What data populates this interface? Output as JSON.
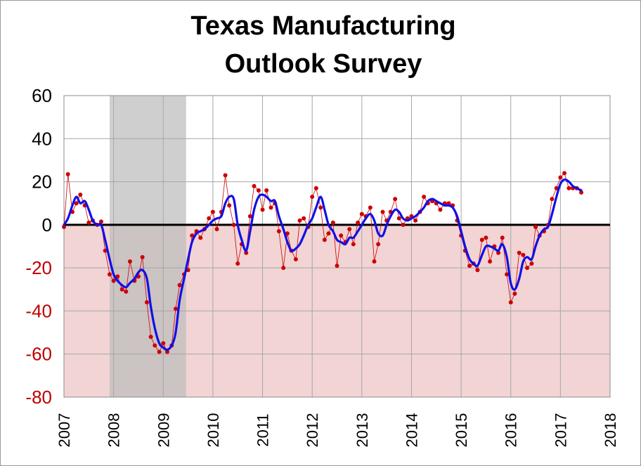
{
  "chart_data": {
    "type": "line",
    "title": [
      "Texas Manufacturing",
      "Outlook Survey"
    ],
    "xlabel": "",
    "ylabel": "",
    "xlim": [
      2007,
      2018
    ],
    "ylim": [
      -80,
      60
    ],
    "y_ticks": [
      "60",
      "40",
      "20",
      "0",
      "-20",
      "-40",
      "-60",
      "-80"
    ],
    "x_ticks": [
      "2007",
      "2008",
      "2009",
      "2010",
      "2011",
      "2012",
      "2013",
      "2014",
      "2015",
      "2016",
      "2017",
      "2018"
    ],
    "grid": true,
    "legend": "none",
    "recession_shading": {
      "from": 2007.92,
      "to": 2009.46,
      "color": "#bdbdbd"
    },
    "negative_region_color": "#f2d4d4",
    "zero_line_color": "#000000",
    "series": [
      {
        "style": "thin red line with red dot markers",
        "color": "#cc0000",
        "points": [
          [
            2007.0,
            -1
          ],
          [
            2007.08,
            23.5
          ],
          [
            2007.17,
            6
          ],
          [
            2007.25,
            10
          ],
          [
            2007.33,
            14
          ],
          [
            2007.42,
            9
          ],
          [
            2007.5,
            1
          ],
          [
            2007.58,
            2
          ],
          [
            2007.67,
            0
          ],
          [
            2007.75,
            1.5
          ],
          [
            2007.83,
            -12
          ],
          [
            2007.92,
            -23
          ],
          [
            2008.0,
            -26
          ],
          [
            2008.08,
            -24
          ],
          [
            2008.17,
            -30
          ],
          [
            2008.25,
            -31
          ],
          [
            2008.33,
            -17
          ],
          [
            2008.42,
            -26
          ],
          [
            2008.5,
            -24
          ],
          [
            2008.58,
            -15
          ],
          [
            2008.67,
            -36
          ],
          [
            2008.75,
            -52
          ],
          [
            2008.83,
            -56
          ],
          [
            2008.92,
            -59
          ],
          [
            2009.0,
            -55
          ],
          [
            2009.08,
            -59
          ],
          [
            2009.17,
            -56
          ],
          [
            2009.25,
            -39
          ],
          [
            2009.33,
            -28
          ],
          [
            2009.42,
            -23
          ],
          [
            2009.5,
            -21
          ],
          [
            2009.58,
            -5
          ],
          [
            2009.67,
            -3
          ],
          [
            2009.75,
            -6
          ],
          [
            2009.83,
            -2
          ],
          [
            2009.92,
            3
          ],
          [
            2010.0,
            6
          ],
          [
            2010.08,
            -2
          ],
          [
            2010.17,
            6
          ],
          [
            2010.25,
            23
          ],
          [
            2010.33,
            9
          ],
          [
            2010.42,
            0
          ],
          [
            2010.5,
            -18
          ],
          [
            2010.58,
            -9
          ],
          [
            2010.67,
            -13
          ],
          [
            2010.75,
            4
          ],
          [
            2010.83,
            18
          ],
          [
            2010.92,
            16
          ],
          [
            2011.0,
            7
          ],
          [
            2011.08,
            16
          ],
          [
            2011.17,
            8
          ],
          [
            2011.25,
            10
          ],
          [
            2011.33,
            -3
          ],
          [
            2011.42,
            -20
          ],
          [
            2011.5,
            -4
          ],
          [
            2011.58,
            -12
          ],
          [
            2011.67,
            -16
          ],
          [
            2011.75,
            2
          ],
          [
            2011.83,
            3
          ],
          [
            2011.92,
            -1
          ],
          [
            2012.0,
            13
          ],
          [
            2012.08,
            17
          ],
          [
            2012.17,
            8
          ],
          [
            2012.25,
            -7
          ],
          [
            2012.33,
            -4
          ],
          [
            2012.42,
            1
          ],
          [
            2012.5,
            -19
          ],
          [
            2012.58,
            -5
          ],
          [
            2012.67,
            -8
          ],
          [
            2012.75,
            -2
          ],
          [
            2012.83,
            -9
          ],
          [
            2012.92,
            1
          ],
          [
            2013.0,
            5
          ],
          [
            2013.08,
            4
          ],
          [
            2013.17,
            8
          ],
          [
            2013.25,
            -17
          ],
          [
            2013.33,
            -9
          ],
          [
            2013.42,
            6
          ],
          [
            2013.5,
            2
          ],
          [
            2013.58,
            6
          ],
          [
            2013.67,
            12
          ],
          [
            2013.75,
            3
          ],
          [
            2013.83,
            0
          ],
          [
            2013.92,
            3
          ],
          [
            2014.0,
            4
          ],
          [
            2014.08,
            2
          ],
          [
            2014.17,
            6
          ],
          [
            2014.25,
            13
          ],
          [
            2014.33,
            10
          ],
          [
            2014.42,
            11
          ],
          [
            2014.5,
            10
          ],
          [
            2014.58,
            7
          ],
          [
            2014.67,
            10
          ],
          [
            2014.75,
            10
          ],
          [
            2014.83,
            9
          ],
          [
            2014.92,
            2
          ],
          [
            2015.0,
            -5
          ],
          [
            2015.08,
            -12
          ],
          [
            2015.17,
            -19
          ],
          [
            2015.25,
            -18
          ],
          [
            2015.33,
            -21
          ],
          [
            2015.42,
            -7
          ],
          [
            2015.5,
            -6
          ],
          [
            2015.58,
            -17
          ],
          [
            2015.67,
            -10
          ],
          [
            2015.75,
            -13
          ],
          [
            2015.83,
            -6
          ],
          [
            2015.92,
            -23
          ],
          [
            2016.0,
            -36
          ],
          [
            2016.08,
            -32
          ],
          [
            2016.17,
            -13
          ],
          [
            2016.25,
            -14
          ],
          [
            2016.33,
            -20
          ],
          [
            2016.42,
            -18
          ],
          [
            2016.5,
            -1
          ],
          [
            2016.58,
            -5
          ],
          [
            2016.67,
            -3
          ],
          [
            2016.75,
            0
          ],
          [
            2016.83,
            12
          ],
          [
            2016.92,
            17
          ],
          [
            2017.0,
            22
          ],
          [
            2017.08,
            24
          ],
          [
            2017.17,
            17
          ],
          [
            2017.25,
            17
          ],
          [
            2017.33,
            17
          ],
          [
            2017.42,
            15
          ]
        ]
      },
      {
        "style": "thick blue smoothed line",
        "color": "#1010e8",
        "points": [
          [
            2007.0,
            0
          ],
          [
            2007.08,
            3
          ],
          [
            2007.17,
            9
          ],
          [
            2007.25,
            13
          ],
          [
            2007.33,
            10
          ],
          [
            2007.42,
            11
          ],
          [
            2007.5,
            7
          ],
          [
            2007.58,
            2
          ],
          [
            2007.67,
            0
          ],
          [
            2007.75,
            0
          ],
          [
            2007.83,
            -7
          ],
          [
            2007.92,
            -16
          ],
          [
            2008.0,
            -23
          ],
          [
            2008.08,
            -26
          ],
          [
            2008.17,
            -28
          ],
          [
            2008.25,
            -29
          ],
          [
            2008.33,
            -27
          ],
          [
            2008.42,
            -25
          ],
          [
            2008.5,
            -22
          ],
          [
            2008.58,
            -21
          ],
          [
            2008.67,
            -25
          ],
          [
            2008.75,
            -38
          ],
          [
            2008.83,
            -48
          ],
          [
            2008.92,
            -55
          ],
          [
            2009.0,
            -57
          ],
          [
            2009.08,
            -58
          ],
          [
            2009.17,
            -56
          ],
          [
            2009.25,
            -50
          ],
          [
            2009.33,
            -35
          ],
          [
            2009.42,
            -25
          ],
          [
            2009.5,
            -16
          ],
          [
            2009.58,
            -8
          ],
          [
            2009.67,
            -4
          ],
          [
            2009.75,
            -3
          ],
          [
            2009.83,
            -2
          ],
          [
            2009.92,
            0
          ],
          [
            2010.0,
            2
          ],
          [
            2010.08,
            3
          ],
          [
            2010.17,
            4
          ],
          [
            2010.25,
            10
          ],
          [
            2010.33,
            13
          ],
          [
            2010.42,
            12
          ],
          [
            2010.5,
            0
          ],
          [
            2010.58,
            -7
          ],
          [
            2010.67,
            -12
          ],
          [
            2010.75,
            -3
          ],
          [
            2010.83,
            7
          ],
          [
            2010.92,
            13
          ],
          [
            2011.0,
            14
          ],
          [
            2011.08,
            13
          ],
          [
            2011.17,
            11
          ],
          [
            2011.25,
            11
          ],
          [
            2011.33,
            4
          ],
          [
            2011.42,
            -2
          ],
          [
            2011.5,
            -8
          ],
          [
            2011.58,
            -12
          ],
          [
            2011.67,
            -11
          ],
          [
            2011.75,
            -9
          ],
          [
            2011.83,
            -5
          ],
          [
            2011.92,
            0
          ],
          [
            2012.0,
            3
          ],
          [
            2012.08,
            8
          ],
          [
            2012.17,
            13
          ],
          [
            2012.25,
            7
          ],
          [
            2012.33,
            0
          ],
          [
            2012.42,
            -3
          ],
          [
            2012.5,
            -7
          ],
          [
            2012.58,
            -8
          ],
          [
            2012.67,
            -9
          ],
          [
            2012.75,
            -6
          ],
          [
            2012.83,
            -6
          ],
          [
            2012.92,
            -3
          ],
          [
            2013.0,
            0
          ],
          [
            2013.08,
            3
          ],
          [
            2013.17,
            5
          ],
          [
            2013.25,
            2
          ],
          [
            2013.33,
            -4
          ],
          [
            2013.42,
            -5
          ],
          [
            2013.5,
            0
          ],
          [
            2013.58,
            4
          ],
          [
            2013.67,
            7
          ],
          [
            2013.75,
            6
          ],
          [
            2013.83,
            3
          ],
          [
            2013.92,
            2
          ],
          [
            2014.0,
            3
          ],
          [
            2014.08,
            4
          ],
          [
            2014.17,
            6
          ],
          [
            2014.25,
            8
          ],
          [
            2014.33,
            11
          ],
          [
            2014.42,
            12
          ],
          [
            2014.5,
            11
          ],
          [
            2014.58,
            10
          ],
          [
            2014.67,
            9
          ],
          [
            2014.75,
            9
          ],
          [
            2014.83,
            8
          ],
          [
            2014.92,
            4
          ],
          [
            2015.0,
            -3
          ],
          [
            2015.08,
            -10
          ],
          [
            2015.17,
            -16
          ],
          [
            2015.25,
            -18
          ],
          [
            2015.33,
            -19
          ],
          [
            2015.42,
            -14
          ],
          [
            2015.5,
            -10
          ],
          [
            2015.58,
            -10
          ],
          [
            2015.67,
            -11
          ],
          [
            2015.75,
            -12
          ],
          [
            2015.83,
            -9
          ],
          [
            2015.92,
            -15
          ],
          [
            2016.0,
            -27
          ],
          [
            2016.08,
            -30
          ],
          [
            2016.17,
            -25
          ],
          [
            2016.25,
            -17
          ],
          [
            2016.33,
            -15
          ],
          [
            2016.42,
            -16
          ],
          [
            2016.5,
            -10
          ],
          [
            2016.58,
            -5
          ],
          [
            2016.67,
            -2
          ],
          [
            2016.75,
            -1
          ],
          [
            2016.83,
            5
          ],
          [
            2016.92,
            13
          ],
          [
            2017.0,
            19
          ],
          [
            2017.08,
            21
          ],
          [
            2017.17,
            20
          ],
          [
            2017.25,
            18
          ],
          [
            2017.33,
            17
          ],
          [
            2017.42,
            16
          ]
        ]
      }
    ]
  }
}
